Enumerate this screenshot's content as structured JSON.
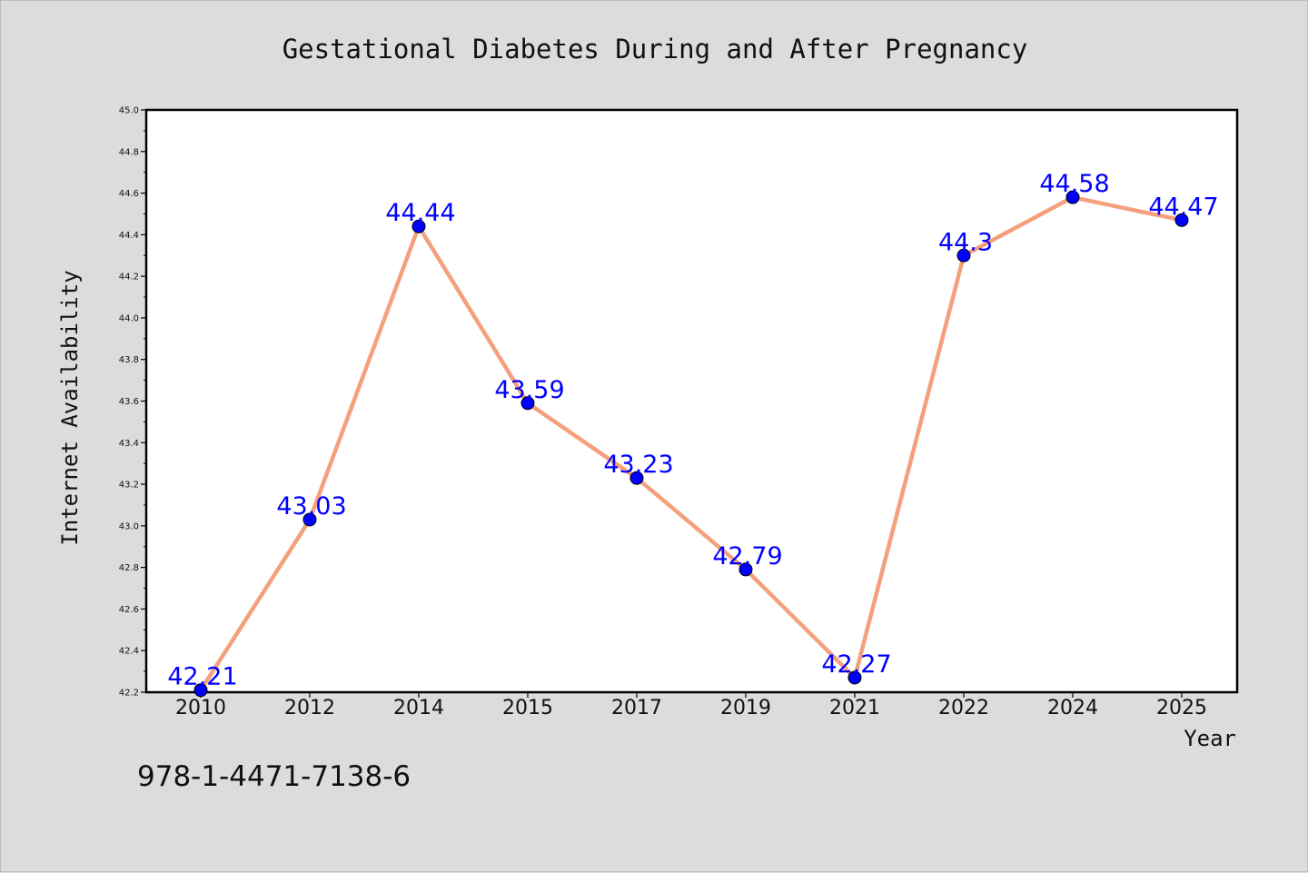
{
  "chart_data": {
    "type": "line",
    "title": "Gestational Diabetes During and After Pregnancy",
    "xlabel": "Year",
    "ylabel": "Internet Availability",
    "categories": [
      "2010",
      "2012",
      "2014",
      "2015",
      "2017",
      "2019",
      "2021",
      "2022",
      "2024",
      "2025"
    ],
    "series": [
      {
        "values": [
          42.21,
          43.03,
          44.44,
          43.59,
          43.23,
          42.79,
          42.27,
          44.3,
          44.58,
          44.47
        ],
        "data_labels": [
          "42.21",
          "43.03",
          "44.44",
          "43.59",
          "43.23",
          "42.79",
          "42.27",
          "44.3",
          "44.58",
          "44.47"
        ],
        "line_color": "#f4a07c",
        "marker_color": "#0000ff"
      }
    ],
    "ylim": [
      42.2,
      45.0
    ],
    "yticks": [
      "42.2",
      "42.4",
      "42.6",
      "42.8",
      "43.0",
      "43.2",
      "43.4",
      "43.6",
      "43.8",
      "44.0",
      "44.2",
      "44.4",
      "44.6",
      "44.8",
      "45.0"
    ],
    "grid": false,
    "legend": "none",
    "label_color": "#0000ff"
  },
  "footer": {
    "code": "978-1-4471-7138-6"
  }
}
